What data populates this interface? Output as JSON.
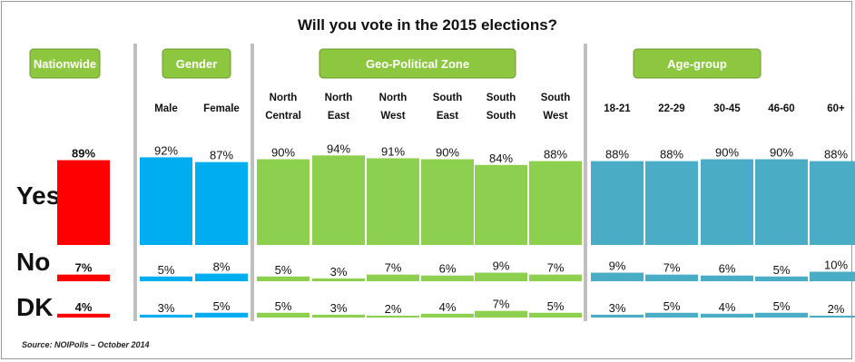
{
  "chart_data": {
    "type": "bar",
    "title": "Will you vote in the 2015 elections?",
    "source": "Source: NOIPolls – October 2014",
    "rows": [
      "Yes",
      "No",
      "DK"
    ],
    "groups": [
      {
        "name": "Nationwide",
        "color": "#ff0000",
        "header_bg": "#8dc63f",
        "header_text_color": "#ff0000",
        "categories": [
          ""
        ]
      },
      {
        "name": "Gender",
        "color": "#00aeef",
        "header_bg": "#8dc63f",
        "header_text_color": "#ffffff",
        "categories": [
          "Male",
          "Female"
        ]
      },
      {
        "name": "Geo-Political Zone",
        "color": "#8dcf4f",
        "header_bg": "#8dc63f",
        "header_text_color": "#ffffff",
        "categories": [
          "North Central",
          "North East",
          "North West",
          "South East",
          "South South",
          "South West"
        ]
      },
      {
        "name": "Age-group",
        "color": "#4bacc6",
        "header_bg": "#8dc63f",
        "header_text_color": "#ffffff",
        "categories": [
          "18-21",
          "22-29",
          "30-45",
          "46-60",
          "60+"
        ]
      }
    ],
    "series": [
      {
        "name": "Yes",
        "values": [
          89,
          92,
          87,
          90,
          94,
          91,
          90,
          84,
          88,
          88,
          88,
          90,
          90,
          88
        ]
      },
      {
        "name": "No",
        "values": [
          7,
          5,
          8,
          5,
          3,
          7,
          6,
          9,
          7,
          9,
          7,
          6,
          5,
          10
        ]
      },
      {
        "name": "DK",
        "values": [
          4,
          3,
          5,
          5,
          3,
          2,
          4,
          7,
          5,
          3,
          5,
          4,
          5,
          2
        ]
      }
    ],
    "unit": "%",
    "divider_color": "#bfbfbf"
  }
}
